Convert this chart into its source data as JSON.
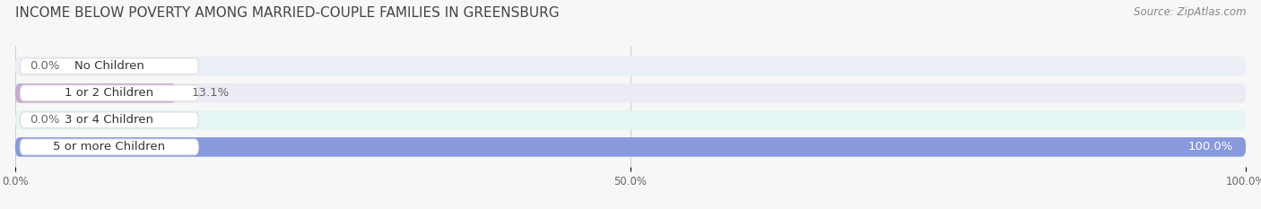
{
  "title": "INCOME BELOW POVERTY AMONG MARRIED-COUPLE FAMILIES IN GREENSBURG",
  "source": "Source: ZipAtlas.com",
  "categories": [
    "No Children",
    "1 or 2 Children",
    "3 or 4 Children",
    "5 or more Children"
  ],
  "values": [
    0.0,
    13.1,
    0.0,
    100.0
  ],
  "bar_colors": [
    "#aac4e2",
    "#c4aad0",
    "#5ecfbe",
    "#8899dd"
  ],
  "bg_colors": [
    "#eaeef5",
    "#edeaf4",
    "#e4f5f3",
    "#eaecf8"
  ],
  "xlim": [
    0,
    100
  ],
  "label_fontsize": 9.5,
  "title_fontsize": 11,
  "value_color": "#666666",
  "label_color": "#333333",
  "background": "#f7f7f7",
  "bar_height": 0.72,
  "tick_labels": [
    "0.0%",
    "50.0%",
    "100.0%"
  ],
  "tick_values": [
    0,
    50,
    100
  ]
}
